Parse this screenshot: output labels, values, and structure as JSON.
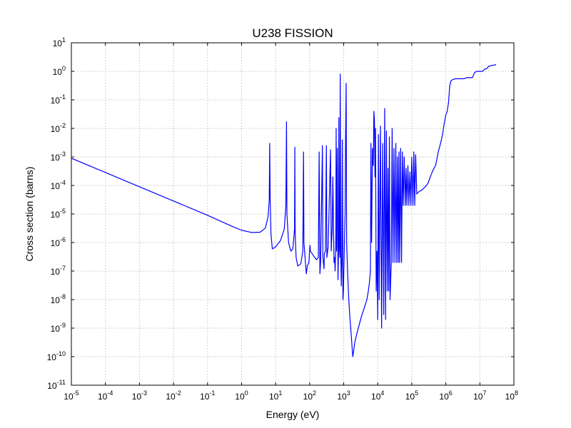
{
  "chart_data": {
    "type": "line",
    "title": "U238 FISSION",
    "xlabel": "Energy (eV)",
    "ylabel": "Cross section (barns)",
    "x_scale": "log",
    "y_scale": "log",
    "xlim": [
      1e-05,
      100000000.0
    ],
    "ylim": [
      1e-11,
      10
    ],
    "grid": true,
    "line_color": "#0000ff",
    "x_ticks": [
      {
        "base": "10",
        "exp": "-5"
      },
      {
        "base": "10",
        "exp": "-4"
      },
      {
        "base": "10",
        "exp": "-3"
      },
      {
        "base": "10",
        "exp": "-2"
      },
      {
        "base": "10",
        "exp": "-1"
      },
      {
        "base": "10",
        "exp": "0"
      },
      {
        "base": "10",
        "exp": "1"
      },
      {
        "base": "10",
        "exp": "2"
      },
      {
        "base": "10",
        "exp": "3"
      },
      {
        "base": "10",
        "exp": "4"
      },
      {
        "base": "10",
        "exp": "5"
      },
      {
        "base": "10",
        "exp": "6"
      },
      {
        "base": "10",
        "exp": "7"
      },
      {
        "base": "10",
        "exp": "8"
      }
    ],
    "y_ticks": [
      {
        "base": "10",
        "exp": "1"
      },
      {
        "base": "10",
        "exp": "0"
      },
      {
        "base": "10",
        "exp": "-1"
      },
      {
        "base": "10",
        "exp": "-2"
      },
      {
        "base": "10",
        "exp": "-3"
      },
      {
        "base": "10",
        "exp": "-4"
      },
      {
        "base": "10",
        "exp": "-5"
      },
      {
        "base": "10",
        "exp": "-6"
      },
      {
        "base": "10",
        "exp": "-7"
      },
      {
        "base": "10",
        "exp": "-8"
      },
      {
        "base": "10",
        "exp": "-9"
      },
      {
        "base": "10",
        "exp": "-10"
      },
      {
        "base": "10",
        "exp": "-11"
      }
    ],
    "series": [
      {
        "points": [
          [
            1e-05,
            0.0009
          ],
          [
            0.0001,
            0.000285
          ],
          [
            0.001,
            9e-05
          ],
          [
            0.01,
            2.85e-05
          ],
          [
            0.1,
            9e-06
          ],
          [
            0.5,
            3.8e-06
          ],
          [
            1.0,
            2.7e-06
          ],
          [
            2.0,
            2.25e-06
          ],
          [
            3.5,
            2.3e-06
          ],
          [
            5.0,
            3.2e-06
          ],
          [
            6.0,
            8e-06
          ],
          [
            6.5,
            3e-05
          ],
          [
            6.7,
            0.003
          ],
          [
            6.9,
            4e-05
          ],
          [
            7.3,
            2e-06
          ],
          [
            8.0,
            6e-07
          ],
          [
            10,
            7e-07
          ],
          [
            14,
            1.2e-06
          ],
          [
            18,
            3e-06
          ],
          [
            20,
            2e-05
          ],
          [
            20.9,
            0.017
          ],
          [
            21.5,
            1e-05
          ],
          [
            24,
            1e-06
          ],
          [
            28,
            5e-07
          ],
          [
            32,
            6e-07
          ],
          [
            36,
            3e-06
          ],
          [
            36.7,
            0.0022
          ],
          [
            37.5,
            2e-06
          ],
          [
            40,
            3e-07
          ],
          [
            45,
            1.5e-07
          ],
          [
            55,
            1.8e-07
          ],
          [
            63,
            5e-07
          ],
          [
            66,
            0.0015
          ],
          [
            68,
            1e-06
          ],
          [
            75,
            2e-07
          ],
          [
            80,
            8e-08
          ],
          [
            85,
            1.5e-07
          ],
          [
            95,
            2e-07
          ],
          [
            102,
            8e-07
          ],
          [
            105,
            5e-07
          ],
          [
            120,
            4e-07
          ],
          [
            140,
            3e-07
          ],
          [
            160,
            2.5e-07
          ],
          [
            180,
            3e-07
          ],
          [
            190,
            0.0015
          ],
          [
            200,
            8e-08
          ],
          [
            210,
            2e-07
          ],
          [
            237,
            0.0025
          ],
          [
            245,
            3e-07
          ],
          [
            264,
            1.2e-07
          ],
          [
            270,
            4e-07
          ],
          [
            290,
            5e-07
          ],
          [
            310,
            0.0025
          ],
          [
            320,
            3e-07
          ],
          [
            350,
            7e-07
          ],
          [
            410,
            0.0018
          ],
          [
            430,
            5e-07
          ],
          [
            460,
            3e-06
          ],
          [
            480,
            0.0002
          ],
          [
            500,
            6e-06
          ],
          [
            520,
            2e-07
          ],
          [
            540,
            3e-07
          ],
          [
            560,
            1e-07
          ],
          [
            585,
            8e-07
          ],
          [
            600,
            0.01
          ],
          [
            620,
            5e-07
          ],
          [
            650,
            0.002
          ],
          [
            680,
            5e-08
          ],
          [
            710,
            8e-07
          ],
          [
            720,
            0.024
          ],
          [
            740,
            1e-06
          ],
          [
            770,
            3e-07
          ],
          [
            790,
            0.8
          ],
          [
            820,
            5e-07
          ],
          [
            850,
            3e-08
          ],
          [
            880,
            2e-07
          ],
          [
            910,
            0.004
          ],
          [
            950,
            1e-08
          ],
          [
            980,
            2e-08
          ],
          [
            1000,
            6e-08
          ],
          [
            1050,
            1e-06
          ],
          [
            1100,
            1e-05
          ],
          [
            1140,
            0.006
          ],
          [
            1180,
            0.38
          ],
          [
            1220,
            1e-06
          ],
          [
            1300,
            1e-07
          ],
          [
            1400,
            1.2e-08
          ],
          [
            1500,
            3e-09
          ],
          [
            1700,
            4e-10
          ],
          [
            1800,
            1.5e-10
          ],
          [
            1850,
            1e-10
          ],
          [
            1950,
            1.5e-10
          ],
          [
            2100,
            3e-10
          ],
          [
            2400,
            6e-10
          ],
          [
            2800,
            1.2e-09
          ],
          [
            3300,
            2.5e-09
          ],
          [
            4000,
            5e-09
          ],
          [
            4800,
            1e-08
          ],
          [
            5300,
            2e-08
          ],
          [
            5700,
            4e-08
          ],
          [
            6100,
            1e-07
          ],
          [
            6300,
            0.003
          ],
          [
            6600,
            1e-06
          ],
          [
            7000,
            0.002
          ],
          [
            7400,
            0.0005
          ],
          [
            7700,
            0.04
          ],
          [
            8000,
            0.02
          ],
          [
            8300,
            0.0002
          ],
          [
            8600,
            0.01
          ],
          [
            9000,
            2e-08
          ],
          [
            9500,
            5e-07
          ],
          [
            10000,
            2e-09
          ],
          [
            10500,
            0.006
          ],
          [
            11000,
            1e-08
          ],
          [
            12000,
            0.012
          ],
          [
            13000,
            1e-09
          ],
          [
            14000,
            0.003
          ],
          [
            15000,
            3e-09
          ],
          [
            16000,
            0.05
          ],
          [
            17000,
            2e-09
          ],
          [
            18000,
            0.008
          ],
          [
            19000,
            2e-08
          ],
          [
            20000,
            0.0004
          ],
          [
            21000,
            2e-08
          ],
          [
            22000,
            0.005
          ],
          [
            23000,
            1e-08
          ],
          [
            25000,
            2e-07
          ],
          [
            26500,
            0.01
          ],
          [
            28000,
            2e-07
          ],
          [
            30000,
            0.002
          ],
          [
            32000,
            2e-07
          ],
          [
            34000,
            0.003
          ],
          [
            36000,
            2e-07
          ],
          [
            38000,
            0.001
          ],
          [
            40000,
            2e-07
          ],
          [
            42000,
            0.0015
          ],
          [
            44000,
            2e-07
          ],
          [
            47000,
            0.002
          ],
          [
            50000,
            2e-07
          ],
          [
            53000,
            0.0015
          ],
          [
            56000,
            2e-05
          ],
          [
            60000,
            0.001
          ],
          [
            64000,
            2e-05
          ],
          [
            68000,
            0.0004
          ],
          [
            72000,
            2e-05
          ],
          [
            77000,
            0.0005
          ],
          [
            82000,
            2e-05
          ],
          [
            88000,
            0.0003
          ],
          [
            94000,
            2e-05
          ],
          [
            100000,
            0.001
          ],
          [
            108000,
            2e-05
          ],
          [
            115000,
            0.0015
          ],
          [
            122000,
            2e-05
          ],
          [
            130000,
            0.0012
          ],
          [
            140000,
            5e-05
          ],
          [
            160000,
            6e-05
          ],
          [
            200000,
            7e-05
          ],
          [
            250000,
            9e-05
          ],
          [
            300000,
            0.00012
          ],
          [
            350000,
            0.0002
          ],
          [
            400000,
            0.0003
          ],
          [
            450000,
            0.0004
          ],
          [
            500000,
            0.0005
          ],
          [
            600000,
            0.0015
          ],
          [
            700000,
            0.003
          ],
          [
            800000,
            0.006
          ],
          [
            900000,
            0.015
          ],
          [
            1000000,
            0.03
          ],
          [
            1100000,
            0.04
          ],
          [
            1200000,
            0.08
          ],
          [
            1300000,
            0.3
          ],
          [
            1400000,
            0.45
          ],
          [
            1600000,
            0.52
          ],
          [
            2000000,
            0.55
          ],
          [
            2500000,
            0.55
          ],
          [
            3000000,
            0.55
          ],
          [
            3500000,
            0.55
          ],
          [
            4000000,
            0.6
          ],
          [
            5000000,
            0.6
          ],
          [
            6000000,
            0.6
          ],
          [
            7000000,
            0.9
          ],
          [
            8000000,
            1.0
          ],
          [
            10000000,
            1.0
          ],
          [
            12000000,
            1.0
          ],
          [
            14000000,
            1.2
          ],
          [
            16000000,
            1.25
          ],
          [
            18000000,
            1.5
          ],
          [
            20000000,
            1.55
          ],
          [
            25000000,
            1.65
          ],
          [
            30000000,
            1.7
          ]
        ]
      }
    ]
  }
}
